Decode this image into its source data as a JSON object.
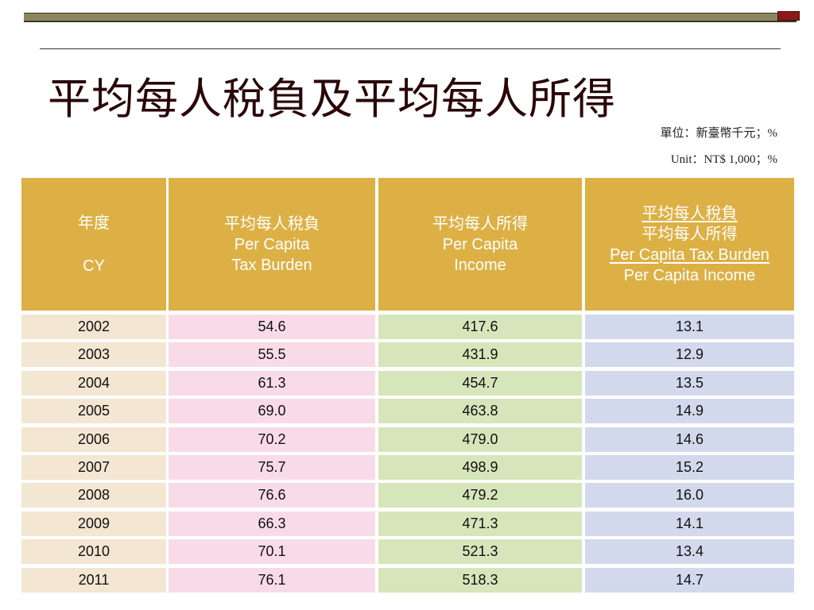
{
  "slide": {
    "title": "平均每人稅負及平均每人所得",
    "unit_zh": "單位：新臺幣千元；%",
    "unit_en": "Unit：NT$ 1,000；%"
  },
  "table": {
    "headers": {
      "year": {
        "zh": "年度",
        "en": "CY"
      },
      "tax": {
        "zh": "平均每人稅負",
        "en1": "Per Capita",
        "en2": "Tax Burden"
      },
      "income": {
        "zh": "平均每人所得",
        "en1": "Per Capita",
        "en2": "Income"
      },
      "ratio": {
        "zh_numerator": "平均每人稅負",
        "zh_denominator": "平均每人所得",
        "en_numerator": "Per Capita Tax Burden",
        "en_denominator": "Per Capita Income"
      }
    },
    "rows": [
      {
        "year": "2002",
        "tax": "54.6",
        "income": "417.6",
        "ratio": "13.1"
      },
      {
        "year": "2003",
        "tax": "55.5",
        "income": "431.9",
        "ratio": "12.9"
      },
      {
        "year": "2004",
        "tax": "61.3",
        "income": "454.7",
        "ratio": "13.5"
      },
      {
        "year": "2005",
        "tax": "69.0",
        "income": "463.8",
        "ratio": "14.9"
      },
      {
        "year": "2006",
        "tax": "70.2",
        "income": "479.0",
        "ratio": "14.6"
      },
      {
        "year": "2007",
        "tax": "75.7",
        "income": "498.9",
        "ratio": "15.2"
      },
      {
        "year": "2008",
        "tax": "76.6",
        "income": "479.2",
        "ratio": "16.0"
      },
      {
        "year": "2009",
        "tax": "66.3",
        "income": "471.3",
        "ratio": "14.1"
      },
      {
        "year": "2010",
        "tax": "70.1",
        "income": "521.3",
        "ratio": "13.4"
      },
      {
        "year": "2011",
        "tax": "76.1",
        "income": "518.3",
        "ratio": "14.7"
      }
    ]
  }
}
